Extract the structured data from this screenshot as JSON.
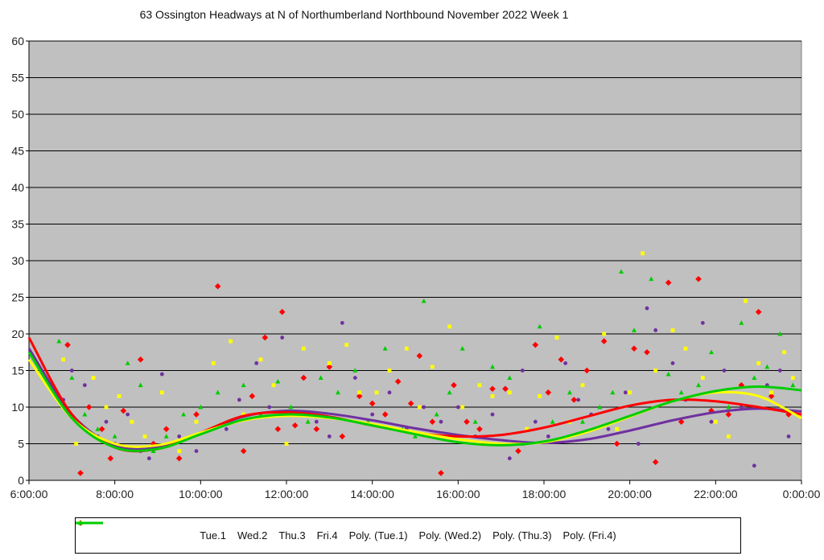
{
  "chart_data": {
    "type": "scatter",
    "title": "63 Ossington Headways at N of Northumberland Northbound November 2022  Week 1",
    "xlabel": "",
    "ylabel": "",
    "x_ticks": [
      "6:00:00",
      "8:00:00",
      "10:00:00",
      "12:00:00",
      "14:00:00",
      "16:00:00",
      "18:00:00",
      "20:00:00",
      "22:00:00",
      "0:00:00"
    ],
    "x_range_hours": [
      6,
      24
    ],
    "y_ticks": [
      0,
      5,
      10,
      15,
      20,
      25,
      30,
      35,
      40,
      45,
      50,
      55,
      60
    ],
    "ylim": [
      0,
      60
    ],
    "grid": "horizontal",
    "legend_position": "bottom",
    "plot_background": "#c0c0c0",
    "series": [
      {
        "name": "Tue.1",
        "marker": "circle",
        "color": "#7030a0",
        "points": [
          [
            6.8,
            11
          ],
          [
            7.0,
            15
          ],
          [
            7.3,
            13
          ],
          [
            7.6,
            6
          ],
          [
            7.8,
            8
          ],
          [
            8.0,
            5
          ],
          [
            8.3,
            9
          ],
          [
            8.6,
            4
          ],
          [
            8.8,
            3
          ],
          [
            9.1,
            14.5
          ],
          [
            9.5,
            6
          ],
          [
            9.9,
            4
          ],
          [
            10.3,
            16
          ],
          [
            10.6,
            7
          ],
          [
            10.9,
            11
          ],
          [
            11.3,
            16
          ],
          [
            11.6,
            10
          ],
          [
            11.9,
            19.5
          ],
          [
            12.3,
            9
          ],
          [
            12.7,
            8
          ],
          [
            13.0,
            6
          ],
          [
            13.3,
            21.5
          ],
          [
            13.6,
            14
          ],
          [
            14.0,
            9
          ],
          [
            14.4,
            12
          ],
          [
            14.8,
            7
          ],
          [
            15.2,
            10
          ],
          [
            15.6,
            8
          ],
          [
            16.0,
            10
          ],
          [
            16.4,
            6
          ],
          [
            16.8,
            9
          ],
          [
            17.2,
            3
          ],
          [
            17.5,
            15
          ],
          [
            17.8,
            8
          ],
          [
            18.1,
            6
          ],
          [
            18.5,
            16
          ],
          [
            18.8,
            11
          ],
          [
            19.1,
            9
          ],
          [
            19.5,
            7
          ],
          [
            19.9,
            12
          ],
          [
            20.2,
            5
          ],
          [
            20.4,
            23.5
          ],
          [
            20.6,
            20.5
          ],
          [
            21.0,
            16
          ],
          [
            21.3,
            11
          ],
          [
            21.7,
            21.5
          ],
          [
            21.9,
            8
          ],
          [
            22.2,
            15
          ],
          [
            22.6,
            10
          ],
          [
            22.9,
            2
          ],
          [
            23.2,
            13
          ],
          [
            23.5,
            15
          ],
          [
            23.7,
            6
          ]
        ]
      },
      {
        "name": "Wed.2",
        "marker": "diamond",
        "color": "#ff0000",
        "points": [
          [
            6.9,
            18.5
          ],
          [
            7.2,
            1
          ],
          [
            7.4,
            10
          ],
          [
            7.7,
            7
          ],
          [
            7.9,
            3
          ],
          [
            8.2,
            9.5
          ],
          [
            8.6,
            16.5
          ],
          [
            8.9,
            5
          ],
          [
            9.2,
            7
          ],
          [
            9.5,
            3
          ],
          [
            9.9,
            9
          ],
          [
            10.4,
            26.5
          ],
          [
            10.7,
            8
          ],
          [
            11.0,
            4
          ],
          [
            11.2,
            11.5
          ],
          [
            11.5,
            19.5
          ],
          [
            11.8,
            7
          ],
          [
            11.9,
            23
          ],
          [
            12.2,
            7.5
          ],
          [
            12.4,
            14
          ],
          [
            12.7,
            7
          ],
          [
            13.0,
            15.5
          ],
          [
            13.3,
            6
          ],
          [
            13.7,
            11.5
          ],
          [
            14.0,
            10.5
          ],
          [
            14.3,
            9
          ],
          [
            14.6,
            13.5
          ],
          [
            14.9,
            10.5
          ],
          [
            15.1,
            17
          ],
          [
            15.4,
            8
          ],
          [
            15.6,
            1
          ],
          [
            15.9,
            13
          ],
          [
            16.2,
            8
          ],
          [
            16.5,
            7
          ],
          [
            16.8,
            12.5
          ],
          [
            17.1,
            12.5
          ],
          [
            17.4,
            4
          ],
          [
            17.8,
            18.5
          ],
          [
            18.1,
            12
          ],
          [
            18.4,
            16.5
          ],
          [
            18.7,
            11
          ],
          [
            19.0,
            15
          ],
          [
            19.4,
            19
          ],
          [
            19.7,
            5
          ],
          [
            20.1,
            18
          ],
          [
            20.4,
            17.5
          ],
          [
            20.6,
            2.5
          ],
          [
            20.9,
            27
          ],
          [
            21.2,
            8
          ],
          [
            21.6,
            27.5
          ],
          [
            21.9,
            9.5
          ],
          [
            22.3,
            9
          ],
          [
            22.6,
            13
          ],
          [
            23.0,
            23
          ],
          [
            23.3,
            11.5
          ],
          [
            23.7,
            9
          ]
        ]
      },
      {
        "name": "Thu.3",
        "marker": "square",
        "color": "#ffff00",
        "points": [
          [
            6.8,
            16.5
          ],
          [
            7.1,
            5
          ],
          [
            7.5,
            14
          ],
          [
            7.8,
            10
          ],
          [
            8.1,
            11.5
          ],
          [
            8.4,
            8
          ],
          [
            8.7,
            6
          ],
          [
            9.1,
            12
          ],
          [
            9.5,
            4
          ],
          [
            9.9,
            8
          ],
          [
            10.3,
            16
          ],
          [
            10.7,
            19
          ],
          [
            11.0,
            9
          ],
          [
            11.4,
            16.5
          ],
          [
            11.7,
            13
          ],
          [
            12.0,
            5
          ],
          [
            12.4,
            18
          ],
          [
            12.7,
            9
          ],
          [
            13.0,
            16
          ],
          [
            13.4,
            18.5
          ],
          [
            13.7,
            12
          ],
          [
            14.1,
            12
          ],
          [
            14.4,
            15
          ],
          [
            14.8,
            18
          ],
          [
            15.1,
            10
          ],
          [
            15.4,
            15.5
          ],
          [
            15.8,
            21
          ],
          [
            16.1,
            10
          ],
          [
            16.5,
            13
          ],
          [
            16.8,
            11.5
          ],
          [
            17.2,
            12
          ],
          [
            17.6,
            7
          ],
          [
            17.9,
            11.5
          ],
          [
            18.3,
            19.5
          ],
          [
            18.6,
            8
          ],
          [
            18.9,
            13
          ],
          [
            19.4,
            20
          ],
          [
            19.7,
            7
          ],
          [
            20.0,
            12
          ],
          [
            20.3,
            31
          ],
          [
            20.6,
            15
          ],
          [
            21.0,
            20.5
          ],
          [
            21.3,
            18
          ],
          [
            21.7,
            14
          ],
          [
            22.0,
            8
          ],
          [
            22.3,
            6
          ],
          [
            22.7,
            24.5
          ],
          [
            23.0,
            16
          ],
          [
            23.3,
            12
          ],
          [
            23.6,
            17.5
          ],
          [
            23.8,
            14
          ]
        ]
      },
      {
        "name": "Fri.4",
        "marker": "triangle",
        "color": "#00cc00",
        "points": [
          [
            6.7,
            19
          ],
          [
            7.0,
            14
          ],
          [
            7.3,
            9
          ],
          [
            7.6,
            7
          ],
          [
            8.0,
            6
          ],
          [
            8.3,
            16
          ],
          [
            8.6,
            13
          ],
          [
            8.9,
            4
          ],
          [
            9.2,
            6
          ],
          [
            9.6,
            9
          ],
          [
            10.0,
            10
          ],
          [
            10.4,
            12
          ],
          [
            10.7,
            8
          ],
          [
            11.0,
            13
          ],
          [
            11.4,
            9
          ],
          [
            11.8,
            13.5
          ],
          [
            12.1,
            10
          ],
          [
            12.5,
            8
          ],
          [
            12.8,
            14
          ],
          [
            13.2,
            12
          ],
          [
            13.6,
            15
          ],
          [
            13.9,
            8
          ],
          [
            14.3,
            18
          ],
          [
            14.7,
            7
          ],
          [
            15.0,
            6
          ],
          [
            15.2,
            24.5
          ],
          [
            15.5,
            9
          ],
          [
            15.8,
            12
          ],
          [
            16.1,
            18
          ],
          [
            16.4,
            8
          ],
          [
            16.8,
            15.5
          ],
          [
            17.2,
            14
          ],
          [
            17.5,
            5
          ],
          [
            17.9,
            21
          ],
          [
            18.2,
            8
          ],
          [
            18.6,
            12
          ],
          [
            18.9,
            8
          ],
          [
            19.3,
            10
          ],
          [
            19.6,
            12
          ],
          [
            19.8,
            28.5
          ],
          [
            20.1,
            20.5
          ],
          [
            20.5,
            27.5
          ],
          [
            20.9,
            14.5
          ],
          [
            21.2,
            12
          ],
          [
            21.6,
            13
          ],
          [
            21.9,
            17.5
          ],
          [
            22.3,
            10
          ],
          [
            22.6,
            21.5
          ],
          [
            22.9,
            14
          ],
          [
            23.2,
            15.5
          ],
          [
            23.5,
            20
          ],
          [
            23.8,
            13
          ]
        ]
      }
    ],
    "trendlines": [
      {
        "name": "Poly. (Tue.1)",
        "color": "#7030a0",
        "x": [
          6,
          7,
          8,
          9,
          10,
          11,
          12,
          13,
          14,
          15,
          16,
          17,
          18,
          19,
          20,
          21,
          22,
          23,
          24
        ],
        "y": [
          18,
          9,
          4.8,
          4.5,
          6.5,
          8.7,
          9.5,
          9.1,
          8.2,
          7.1,
          6.2,
          5.5,
          5.1,
          5.6,
          6.8,
          8.2,
          9.3,
          9.8,
          9.4
        ]
      },
      {
        "name": "Poly. (Wed.2)",
        "color": "#ff0000",
        "x": [
          6,
          7,
          8,
          9,
          10,
          11,
          12,
          13,
          14,
          15,
          16,
          17,
          18,
          19,
          20,
          21,
          22,
          23,
          24
        ],
        "y": [
          19.5,
          9,
          4.5,
          4.3,
          6.5,
          8.8,
          9.3,
          8.7,
          7.5,
          6.5,
          6,
          6.2,
          7.2,
          8.7,
          10.2,
          11,
          10.8,
          10,
          9
        ]
      },
      {
        "name": "Poly. (Thu.3)",
        "color": "#ffff00",
        "x": [
          6,
          7,
          8,
          9,
          10,
          11,
          12,
          13,
          14,
          15,
          16,
          17,
          18,
          19,
          20,
          21,
          22,
          23,
          24
        ],
        "y": [
          16.5,
          8.5,
          5,
          4.8,
          6.5,
          8.2,
          8.8,
          8.5,
          7.7,
          6.6,
          5.6,
          5,
          5.2,
          6.6,
          8.7,
          10.8,
          12,
          11.5,
          8.5
        ]
      },
      {
        "name": "Poly. (Fri.4)",
        "color": "#00cc00",
        "x": [
          6,
          7,
          8,
          9,
          10,
          11,
          12,
          13,
          14,
          15,
          16,
          17,
          18,
          19,
          20,
          21,
          22,
          23,
          24
        ],
        "y": [
          17.5,
          8.5,
          4.5,
          4.3,
          6.3,
          8.3,
          9,
          8.6,
          7.5,
          6.3,
          5.2,
          4.8,
          5.3,
          6.8,
          8.8,
          10.8,
          12.2,
          12.8,
          12.3
        ]
      }
    ],
    "legend": [
      "Tue.1",
      "Wed.2",
      "Thu.3",
      "Fri.4",
      "Poly. (Tue.1)",
      "Poly. (Wed.2)",
      "Poly. (Thu.3)",
      "Poly. (Fri.4)"
    ]
  }
}
